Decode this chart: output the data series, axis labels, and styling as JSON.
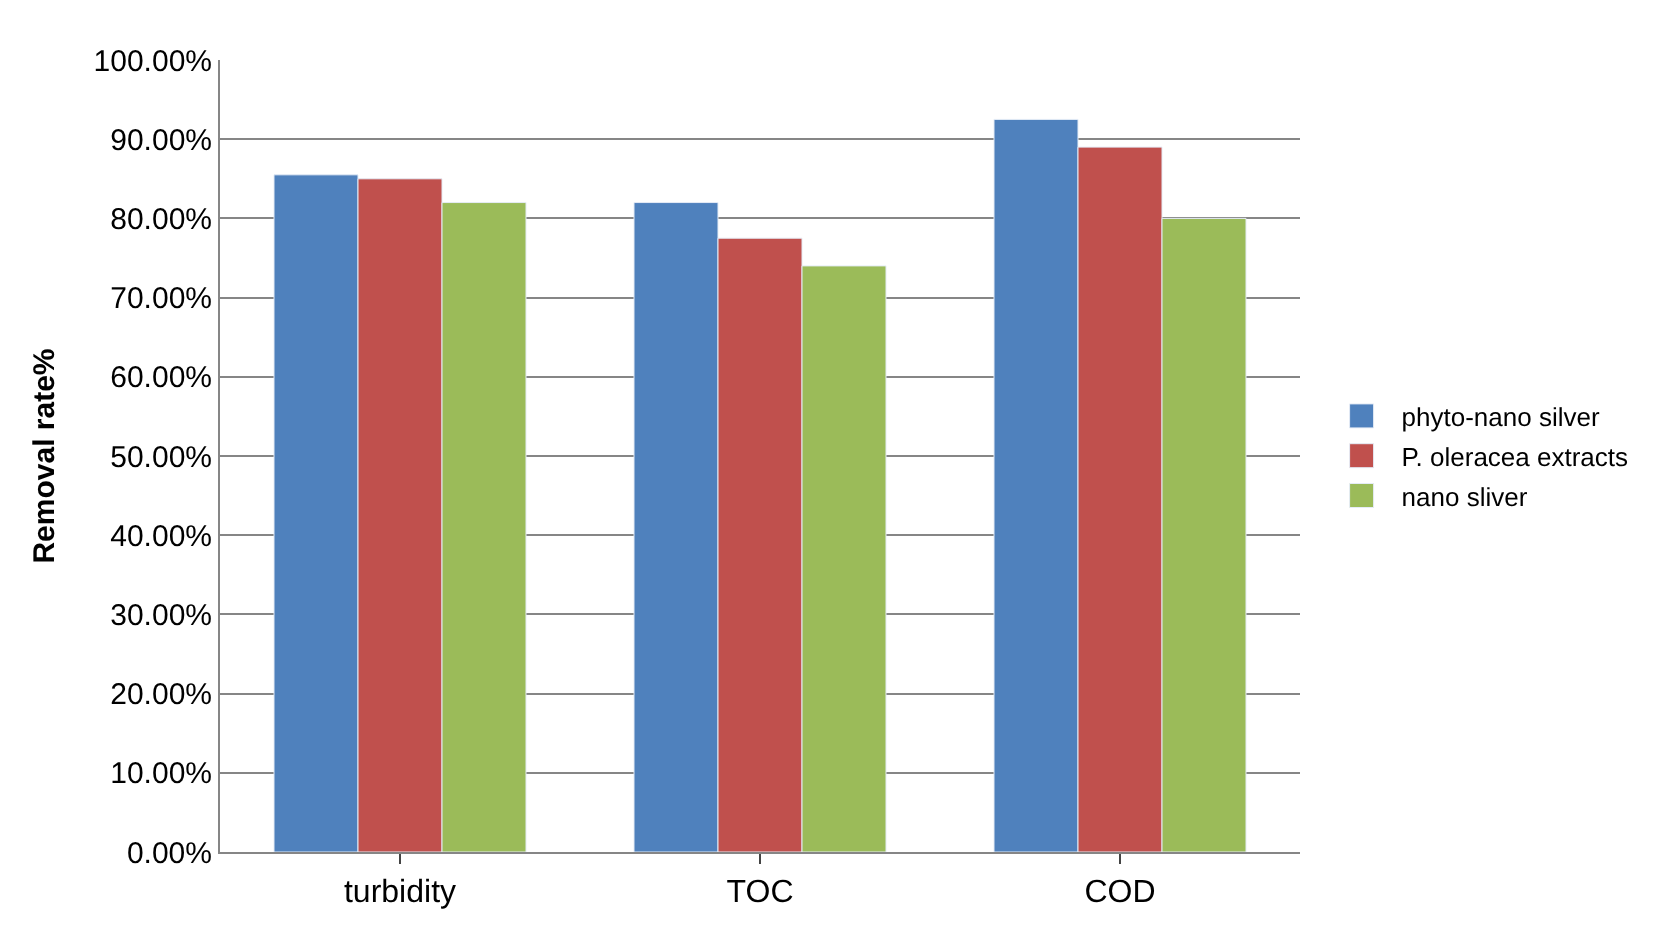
{
  "chart_data": {
    "type": "bar",
    "ylabel": "Removal rate%",
    "categories": [
      "turbidity",
      "TOC",
      "COD"
    ],
    "series": [
      {
        "name": "phyto-nano silver",
        "color": "#4f81bd",
        "values": [
          85.5,
          82,
          92.5
        ]
      },
      {
        "name": "P. oleracea extracts",
        "color": "#c0504d",
        "values": [
          85,
          77.5,
          89
        ]
      },
      {
        "name": "nano sliver",
        "color": "#9bbb59",
        "values": [
          82,
          74,
          80
        ]
      }
    ],
    "ylim": [
      0,
      100
    ],
    "yticks": [
      {
        "value": 0,
        "label": "0.00%"
      },
      {
        "value": 10,
        "label": "10.00%"
      },
      {
        "value": 20,
        "label": "20.00%"
      },
      {
        "value": 30,
        "label": "30.00%"
      },
      {
        "value": 40,
        "label": "40.00%"
      },
      {
        "value": 50,
        "label": "50.00%"
      },
      {
        "value": 60,
        "label": "60.00%"
      },
      {
        "value": 70,
        "label": "70.00%"
      },
      {
        "value": 80,
        "label": "80.00%"
      },
      {
        "value": 90,
        "label": "90.00%"
      },
      {
        "value": 100,
        "label": "100.00%"
      }
    ],
    "grid": "y",
    "legend": "right"
  }
}
